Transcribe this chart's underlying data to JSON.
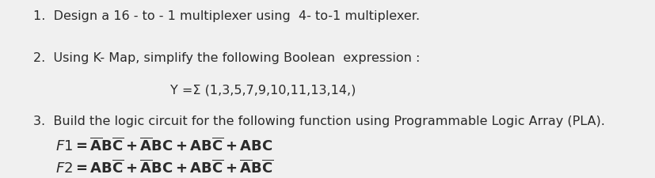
{
  "background_color": "#f0f0f0",
  "text_color": "#2a2a2a",
  "font_size": 11.5,
  "line1": "1.  Design a 16 - to - 1 multiplexer using  4- to-1 multiplexer.",
  "line2_a": "2.  Using K- Map, simplify the following Boolean  expression :",
  "line2_b": "Y =Σ (1,3,5,7,9,10,11,13,14,)",
  "line3_a": "3.  Build the logic circuit for the following function using Programmable Logic Array (PLA).",
  "f1_math": "$\\mathbf{\\mathit{F1 = \\bar{A}B\\bar{C} + \\bar{A}BC + AB\\bar{C} + ABC}}$",
  "f2_math": "$\\mathbf{\\mathit{F2 = AB\\bar{C} + \\bar{A}BC + AB\\bar{C} + \\bar{A}B\\bar{C}}}$"
}
